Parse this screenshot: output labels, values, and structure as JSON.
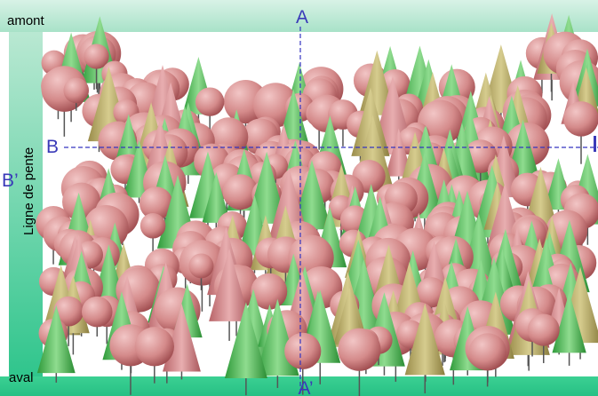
{
  "labels": {
    "top": "amont",
    "bottom": "aval",
    "slope": "Ligne de pente"
  },
  "section_a": {
    "start": "A",
    "end": "A’"
  },
  "section_b": {
    "start": "B",
    "end": "B’"
  }
}
